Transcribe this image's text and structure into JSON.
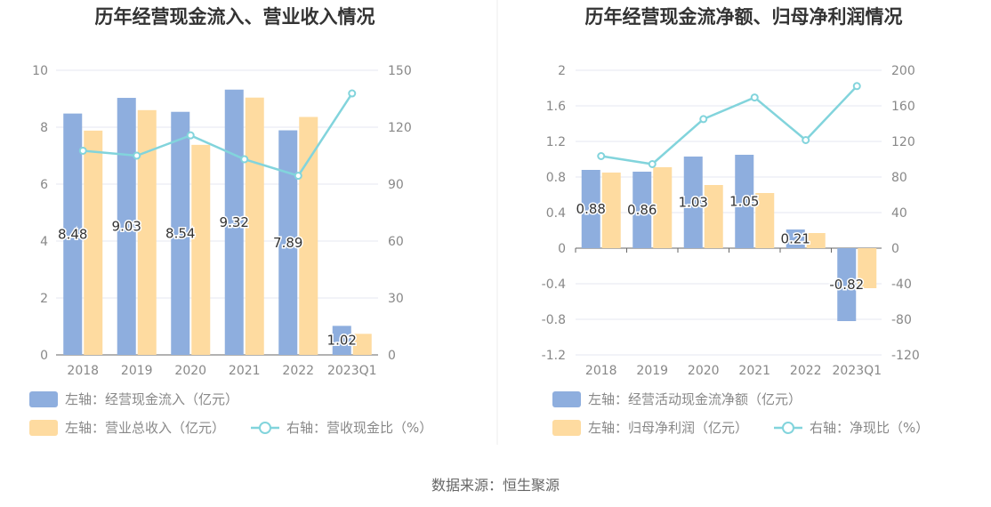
{
  "colors": {
    "bar_primary": "#8eaede",
    "bar_secondary": "#fedba0",
    "line": "#82d4dc",
    "text": "#888888",
    "title": "#333333",
    "grid": "#e4e7f2",
    "axis": "#666666",
    "divider": "#eeeeee"
  },
  "footer": "数据来源：恒生聚源",
  "chart_data": [
    {
      "type": "bar",
      "title": "历年经营现金流入、营业收入情况",
      "categories": [
        "2018",
        "2019",
        "2020",
        "2021",
        "2022",
        "2023Q1"
      ],
      "left_axis": {
        "ticks": [
          "0",
          "2",
          "4",
          "6",
          "8",
          "10"
        ],
        "range": [
          0,
          10
        ]
      },
      "right_axis": {
        "ticks": [
          "0",
          "30",
          "60",
          "90",
          "120",
          "150"
        ],
        "range": [
          0,
          150
        ]
      },
      "series": [
        {
          "name": "左轴：经营现金流入（亿元）",
          "axis": "left",
          "kind": "bar",
          "values": [
            8.48,
            9.03,
            8.54,
            9.32,
            7.89,
            1.02
          ],
          "labels": [
            "8.48",
            "9.03",
            "8.54",
            "9.32",
            "7.89",
            "1.02"
          ]
        },
        {
          "name": "左轴：营业总收入（亿元）",
          "axis": "left",
          "kind": "bar",
          "values": [
            7.88,
            8.6,
            7.38,
            9.04,
            8.36,
            0.74
          ]
        },
        {
          "name": "右轴：营收现金比（%）",
          "axis": "right",
          "kind": "line",
          "values": [
            107.6,
            105.0,
            115.7,
            103.1,
            94.4,
            137.8
          ]
        }
      ],
      "grid": true,
      "legend_position": "bottom"
    },
    {
      "type": "bar",
      "title": "历年经营现金流净额、归母净利润情况",
      "categories": [
        "2018",
        "2019",
        "2020",
        "2021",
        "2022",
        "2023Q1"
      ],
      "left_axis": {
        "ticks": [
          "-1.2",
          "-0.8",
          "-0.4",
          "0",
          "0.4",
          "0.8",
          "1.2",
          "1.6",
          "2"
        ],
        "range": [
          -1.2,
          2
        ]
      },
      "right_axis": {
        "ticks": [
          "-120",
          "-80",
          "-40",
          "0",
          "40",
          "80",
          "120",
          "160",
          "200"
        ],
        "range": [
          -120,
          200
        ]
      },
      "series": [
        {
          "name": "左轴：经营活动现金流净额（亿元）",
          "axis": "left",
          "kind": "bar",
          "values": [
            0.88,
            0.86,
            1.03,
            1.05,
            0.21,
            -0.82
          ],
          "labels": [
            "0.88",
            "0.86",
            "1.03",
            "1.05",
            "0.21",
            "-0.82"
          ]
        },
        {
          "name": "左轴：归母净利润（亿元）",
          "axis": "left",
          "kind": "bar",
          "values": [
            0.85,
            0.91,
            0.71,
            0.62,
            0.17,
            -0.45
          ]
        },
        {
          "name": "右轴：净现比（%）",
          "axis": "right",
          "kind": "line",
          "values": [
            103.5,
            94.5,
            145.1,
            169.4,
            121.5,
            182.2
          ]
        }
      ],
      "grid": true,
      "legend_position": "bottom"
    }
  ]
}
